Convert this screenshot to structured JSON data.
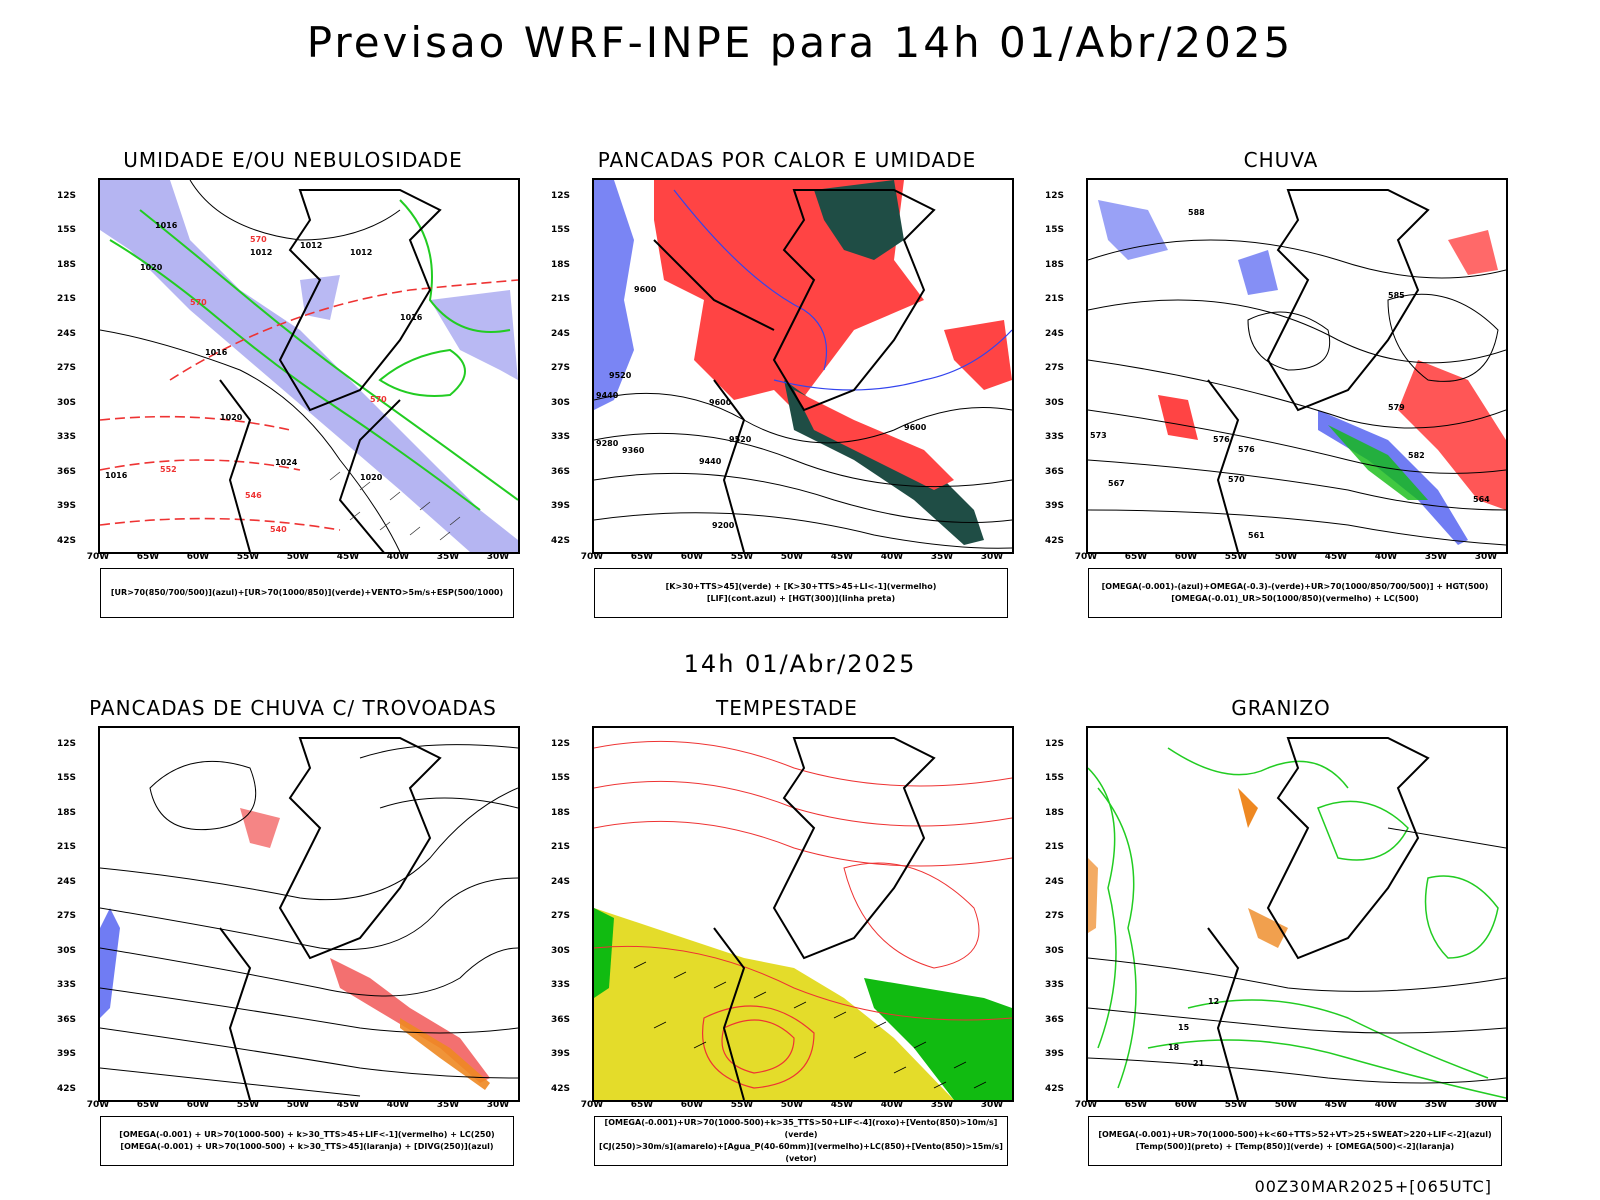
{
  "title": "Previsao WRF-INPE  para 14h 01/Abr/2025",
  "mid_title": "14h 01/Abr/2025",
  "footer": "00Z30MAR2025+[065UTC]",
  "latitudes": [
    "12S",
    "15S",
    "18S",
    "21S",
    "24S",
    "27S",
    "30S",
    "33S",
    "36S",
    "39S",
    "42S"
  ],
  "longitudes": [
    "70W",
    "65W",
    "60W",
    "55W",
    "50W",
    "45W",
    "40W",
    "35W",
    "30W"
  ],
  "panels": [
    {
      "title": "UMIDADE E/OU NEBULOSIDADE",
      "legend": [
        "[UR>70(850/700/500)](azul)+[UR>70(1000/850)](verde)+VENTO>5m/s+ESP(500/1000)"
      ],
      "contour_labels": [
        "1016",
        "1020",
        "1012",
        "1012",
        "1012",
        "1016",
        "1016",
        "1020",
        "1024",
        "1016",
        "1020",
        "570",
        "570",
        "552",
        "546",
        "540",
        "570"
      ]
    },
    {
      "title": "PANCADAS POR CALOR E UMIDADE",
      "legend": [
        "[K>30+TTS>45](verde) + [K>30+TTS>45+LI<-1](vermelho)",
        "[LIF](cont.azul) + [HGT(300)](linha preta)"
      ],
      "contour_labels": [
        "9600",
        "9520",
        "9440",
        "9600",
        "9520",
        "9440",
        "9360",
        "9200",
        "9280",
        "9600"
      ]
    },
    {
      "title": "CHUVA",
      "legend": [
        "[OMEGA(-0.001)-(azul)+OMEGA(-0.3)-(verde)+UR>70(1000/850/700/500)] + HGT(500)",
        "[OMEGA(-0.01)_UR>50(1000/850)(vermelho) + LC(500)"
      ],
      "contour_labels": [
        "588",
        "585",
        "576",
        "570",
        "567",
        "564",
        "561",
        "573",
        "582",
        "579",
        "576"
      ]
    },
    {
      "title": "PANCADAS DE CHUVA C/ TROVOADAS",
      "legend": [
        "[OMEGA(-0.001) + UR>70(1000-500) + k>30_TTS>45+LIF<-1](vermelho) + LC(250)",
        "[OMEGA(-0.001) + UR>70(1000-500) + k>30_TTS>45](laranja) + [DIVG(250)](azul)"
      ],
      "contour_labels": []
    },
    {
      "title": "TEMPESTADE",
      "legend": [
        "[OMEGA(-0.001)+UR>70(1000-500)+k>35_TTS>50+LIF<-4](roxo)+[Vento(850)>10m/s](verde)",
        "[CJ(250)>30m/s](amarelo)+[Agua_P(40-60mm)](vermelho)+LC(850)+[Vento(850)>15m/s](vetor)"
      ],
      "contour_labels": []
    },
    {
      "title": "GRANIZO",
      "legend": [
        "[OMEGA(-0.001)+UR>70(1000-500)+k<60+TTS>52+VT>25+SWEAT>220+LIF<-2](azul)",
        "[Temp(500)](preto) + [Temp(850)](verde) + [OMEGA(500)<-2](laranja)"
      ],
      "contour_labels": [
        "12",
        "15",
        "18",
        "21"
      ]
    }
  ],
  "colors": {
    "frame": "#000000",
    "blue_fill": "#a8a8f0",
    "green_line": "#22cc22",
    "red_line": "#ee3333",
    "red_fill": "#ff4444",
    "dark_teal": "#1f4d45",
    "yellow_fill": "#e4dc2a",
    "green_fill": "#11bb11",
    "orange": "#ee8822",
    "blue_line": "#3344ee"
  }
}
